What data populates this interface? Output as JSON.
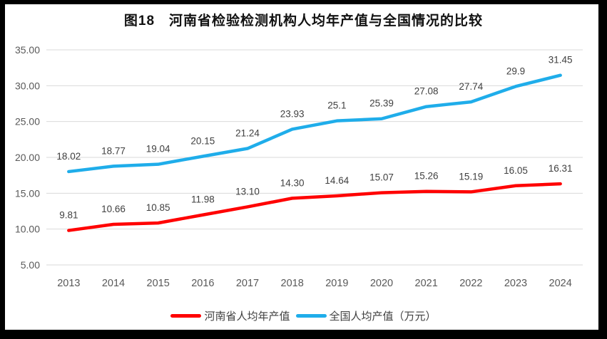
{
  "title": "图18　河南省检验检测机构人均年产值与全国情况的比较",
  "chart_data": {
    "type": "line",
    "title": "图18　河南省检验检测机构人均年产值与全国情况的比较",
    "categories": [
      "2013",
      "2014",
      "2015",
      "2016",
      "2017",
      "2018",
      "2019",
      "2020",
      "2021",
      "2022",
      "2023",
      "2024"
    ],
    "series": [
      {
        "name": "河南省人均年产值",
        "color": "#FF0000",
        "values": [
          9.81,
          10.66,
          10.85,
          11.98,
          13.1,
          14.3,
          14.64,
          15.07,
          15.26,
          15.19,
          16.05,
          16.31
        ],
        "labels": [
          "9.81",
          "10.66",
          "10.85",
          "11.98",
          "13.10",
          "14.30",
          "14.64",
          "15.07",
          "15.26",
          "15.19",
          "16.05",
          "16.31"
        ]
      },
      {
        "name": "全国人均产值（万元）",
        "color": "#1FADEA",
        "values": [
          18.02,
          18.77,
          19.04,
          20.15,
          21.24,
          23.93,
          25.1,
          25.39,
          27.08,
          27.74,
          29.9,
          31.45
        ],
        "labels": [
          "18.02",
          "18.77",
          "19.04",
          "20.15",
          "21.24",
          "23.93",
          "25.1",
          "25.39",
          "27.08",
          "27.74",
          "29.9",
          "31.45"
        ]
      }
    ],
    "xlabel": "",
    "ylabel": "",
    "ylim": [
      5,
      35
    ],
    "yticks": [
      "5.00",
      "10.00",
      "15.00",
      "20.00",
      "25.00",
      "30.00",
      "35.00"
    ],
    "grid": true,
    "legend_position": "bottom",
    "palette": {
      "grid_line": "#D9D9D9",
      "axis_text": "#595959",
      "data_label_text": "#404040",
      "frame_border": "#000000",
      "background": "#FFFFFF"
    }
  }
}
